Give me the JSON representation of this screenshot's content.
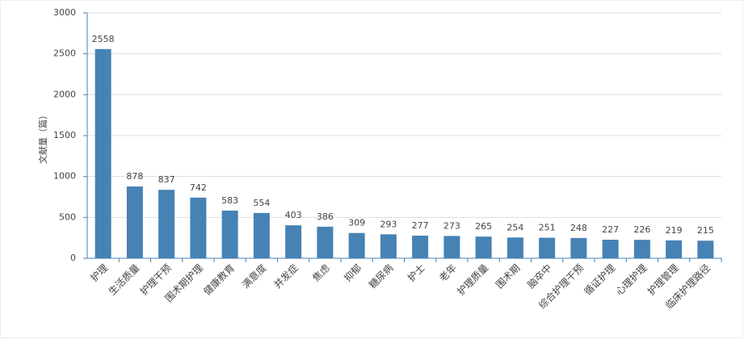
{
  "chart_data": {
    "type": "bar",
    "y_label": "文献量（篇）",
    "categories": [
      "护理",
      "生活质量",
      "护理干预",
      "围术期护理",
      "健康教育",
      "满意度",
      "并发症",
      "焦虑",
      "抑郁",
      "糖尿病",
      "护士",
      "老年",
      "护理质量",
      "围术期",
      "脑卒中",
      "综合护理干预",
      "循证护理",
      "心理护理",
      "护理管理",
      "临床护理路径"
    ],
    "values": [
      2558,
      878,
      837,
      742,
      583,
      554,
      403,
      386,
      309,
      293,
      277,
      273,
      265,
      254,
      251,
      248,
      227,
      226,
      219,
      215
    ],
    "color": "#4682b4",
    "ylim": [
      0,
      3000
    ],
    "yticks": [
      0,
      500,
      1000,
      1500,
      2000,
      2500,
      3000
    ],
    "grid": true
  }
}
